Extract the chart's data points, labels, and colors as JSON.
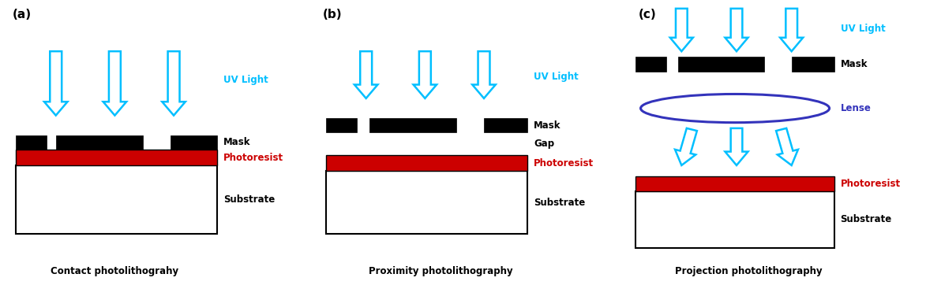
{
  "fig_width": 11.73,
  "fig_height": 3.62,
  "bg_color": "#ffffff",
  "cyan": "#00bfff",
  "blue_lense": "#3333bb",
  "red": "#cc0000",
  "black": "#000000",
  "panel_a": {
    "label": "(a)",
    "title": "Contact photolithograhy"
  },
  "panel_b": {
    "label": "(b)",
    "title": "Proximity photolithography"
  },
  "panel_c": {
    "label": "(c)",
    "title": "Projection photolithography"
  }
}
